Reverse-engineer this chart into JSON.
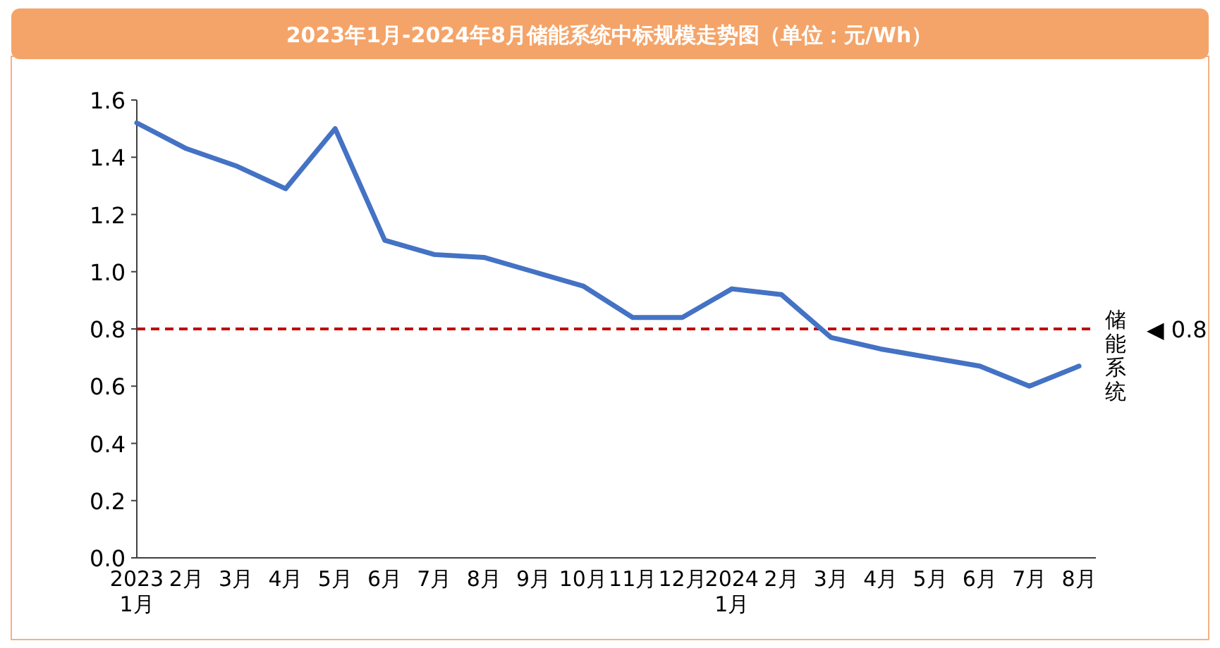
{
  "chart_data": {
    "type": "line",
    "title": "2023年1月-2024年8月储能系统中标规模走势图（单位：元/Wh）",
    "categories": [
      "2023\n1月",
      "2月",
      "3月",
      "4月",
      "5月",
      "6月",
      "7月",
      "8月",
      "9月",
      "10月",
      "11月",
      "12月",
      "2024\n1月",
      "2月",
      "3月",
      "4月",
      "5月",
      "6月",
      "7月",
      "8月"
    ],
    "series": [
      {
        "name": "储能系统",
        "color": "#4472c4",
        "values": [
          1.52,
          1.43,
          1.37,
          1.29,
          1.5,
          1.11,
          1.06,
          1.05,
          1.0,
          0.95,
          0.84,
          0.84,
          0.94,
          0.92,
          0.77,
          0.73,
          0.7,
          0.67,
          0.6,
          0.67
        ]
      }
    ],
    "ylim": [
      0,
      1.6
    ],
    "yticks": [
      {
        "value": 0,
        "label": "0.0"
      },
      0.2,
      0.4,
      0.6,
      0.8,
      {
        "value": 1,
        "label": "1.0"
      },
      1.2,
      1.4,
      1.6
    ],
    "ref_lines": [
      {
        "axis": "y",
        "value": 0.8,
        "label": "◀ 0.8",
        "color": "#c00000",
        "line_style": "dashed"
      }
    ]
  }
}
